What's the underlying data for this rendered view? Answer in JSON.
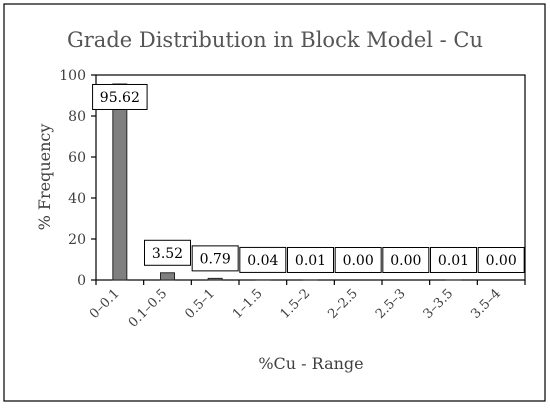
{
  "chart_data": {
    "type": "bar",
    "title": "Grade Distribution in Block Model - Cu",
    "xlabel": "%Cu - Range",
    "ylabel": "% Frequency",
    "categories": [
      "0–0.1",
      "0.1–0.5",
      "0.5–1",
      "1–1.5",
      "1.5–2",
      "2–2.5",
      "2.5–3",
      "3–3.5",
      "3.5–4"
    ],
    "values": [
      95.62,
      3.52,
      0.79,
      0.04,
      0.01,
      0.0,
      0.0,
      0.01,
      0.0
    ],
    "data_labels": [
      "95.62",
      "3.52",
      "0.79",
      "0.04",
      "0.01",
      "0.00",
      "0.00",
      "0.01",
      "0.00"
    ],
    "ylim": [
      0,
      100
    ],
    "yticks": [
      0,
      20,
      40,
      60,
      80,
      100
    ],
    "grid": false,
    "legend": "none",
    "colors": {
      "bar_fill": "#7f7f7f",
      "bar_stroke": "#262626",
      "axis": "#000000",
      "frame": "#000000"
    }
  }
}
